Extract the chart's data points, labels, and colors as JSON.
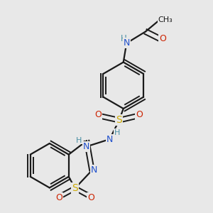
{
  "bg_color": "#e8e8e8",
  "bond_color": "#1a1a1a",
  "atom_colors": {
    "N": "#2050cc",
    "O": "#cc2200",
    "S": "#ccaa00",
    "H": "#4a90a4",
    "C": "#1a1a1a"
  }
}
